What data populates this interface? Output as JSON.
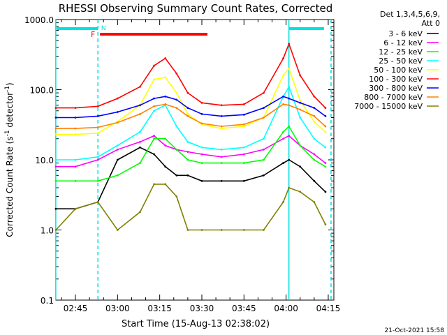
{
  "title": "RHESSI Observing Summary Count Rates, Corrected",
  "xlabel": "Start Time (15-Aug-13 02:38:02)",
  "ylabel_main": "Corrected Count Rate (s",
  "ylabel_sup1": "-1",
  "ylabel_mid": " detector",
  "ylabel_sup2": "-1",
  "ylabel_end": ")",
  "legend_header_1": "Det 1,3,4,5,6,9,",
  "legend_header_2": "Att 0",
  "timestamp": "21-Oct-2021 15:58",
  "flag_F": "F",
  "flag_N": "N",
  "chart_data": {
    "type": "line",
    "y_scale": "log",
    "ylim": [
      0.1,
      1000
    ],
    "y_ticks": [
      "0.1",
      "1.0",
      "10.0",
      "100.0",
      "1000.0"
    ],
    "x_range_minutes_labels": [
      "02:45",
      "03:00",
      "03:15",
      "03:30",
      "03:45",
      "04:00",
      "04:15"
    ],
    "x_tick_times": [
      "02:45",
      "03:00",
      "03:15",
      "03:30",
      "03:45",
      "04:00",
      "04:15"
    ],
    "grid": false,
    "legend_position": "top-right, outside plot",
    "x_samples": [
      "02:38",
      "02:45",
      "02:53",
      "03:00",
      "03:08",
      "03:13",
      "03:17",
      "03:21",
      "03:25",
      "03:30",
      "03:37",
      "03:45",
      "03:52",
      "03:59",
      "04:01",
      "04:05",
      "04:10",
      "04:14"
    ],
    "series": [
      {
        "name": "3 - 6 keV",
        "color": "#000000",
        "values": [
          2.0,
          2.0,
          2.5,
          10,
          15,
          12,
          8,
          6,
          6,
          5,
          5,
          5,
          6,
          9,
          10,
          8,
          5,
          3.5
        ]
      },
      {
        "name": "6 - 12 keV",
        "color": "#ff00ff",
        "values": [
          8,
          8,
          10,
          14,
          18,
          22,
          16,
          14,
          13,
          12,
          11,
          12,
          14,
          20,
          22,
          16,
          12,
          9
        ]
      },
      {
        "name": "12 - 25 keV",
        "color": "#00ff00",
        "values": [
          5,
          5,
          5,
          6,
          9,
          20,
          20,
          14,
          10,
          9,
          9,
          9,
          10,
          25,
          30,
          16,
          10,
          8
        ]
      },
      {
        "name": "25 - 50 keV",
        "color": "#00ffff",
        "values": [
          10,
          10,
          11,
          16,
          25,
          50,
          60,
          30,
          18,
          15,
          14,
          15,
          20,
          80,
          110,
          40,
          20,
          15
        ]
      },
      {
        "name": "50 - 100 keV",
        "color": "#ffff00",
        "values": [
          23,
          23,
          24,
          35,
          60,
          140,
          150,
          90,
          45,
          32,
          28,
          30,
          40,
          160,
          200,
          70,
          35,
          25
        ]
      },
      {
        "name": "100 - 300 keV",
        "color": "#ff0000",
        "values": [
          55,
          55,
          58,
          75,
          110,
          220,
          280,
          170,
          90,
          65,
          60,
          62,
          90,
          280,
          450,
          160,
          80,
          55
        ]
      },
      {
        "name": "300 - 800 keV",
        "color": "#0000ff",
        "values": [
          40,
          40,
          42,
          48,
          60,
          75,
          80,
          72,
          55,
          45,
          42,
          44,
          55,
          80,
          75,
          65,
          55,
          42
        ]
      },
      {
        "name": "800 - 7000 keV",
        "color": "#ff8000",
        "values": [
          28,
          28,
          29,
          34,
          45,
          58,
          62,
          55,
          42,
          33,
          30,
          32,
          40,
          62,
          60,
          52,
          42,
          30
        ]
      },
      {
        "name": "7000 - 15000 keV",
        "color": "#808000",
        "values": [
          1.0,
          2.0,
          2.5,
          1.0,
          1.8,
          4.5,
          4.5,
          3.0,
          1.0,
          1.0,
          1.0,
          1.0,
          1.0,
          2.5,
          4.0,
          3.5,
          2.5,
          1.2
        ]
      }
    ],
    "annotations": {
      "night_intervals": [
        [
          "02:38",
          "02:53"
        ],
        [
          "04:01",
          "04:16"
        ]
      ],
      "flare_flag_interval": [
        "02:53",
        "03:32"
      ]
    }
  }
}
